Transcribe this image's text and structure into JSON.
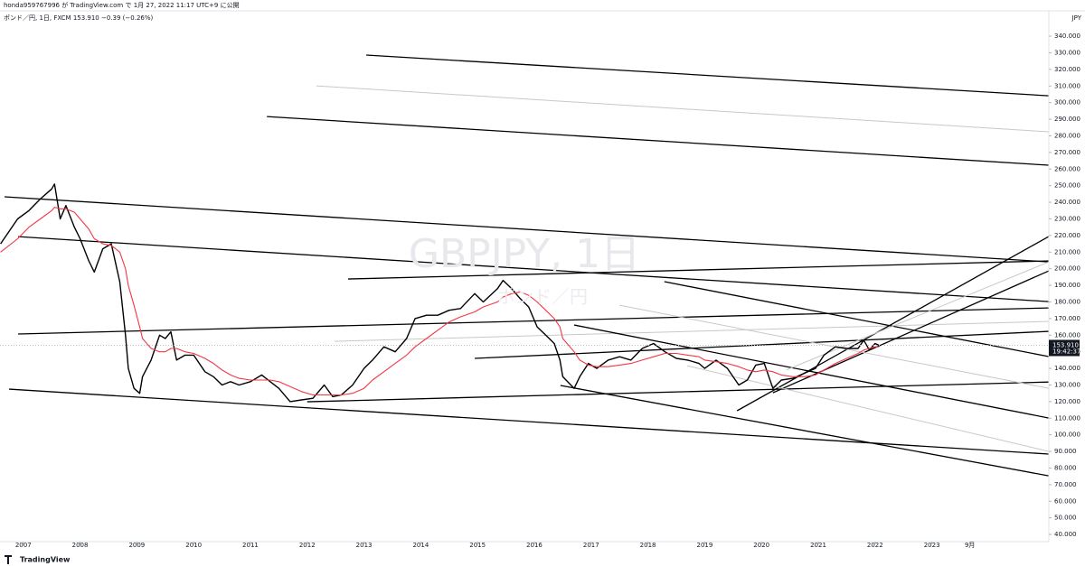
{
  "header": {
    "author": "honda959767996 が TradingView.com で 1月 27, 2022 11:17 UTC+9 に公開",
    "symbol": "ポンド／円, 1日, FXCM  153.910  −0.39 (−0.26%)",
    "watermark": "GBPJPY, 1日",
    "watermark_sub": "ポンド／円",
    "axis_unit": "JPY",
    "last_price_label": "153.910",
    "countdown": "19:42:37",
    "brand": "TradingView"
  },
  "chart_data": {
    "type": "line",
    "x": [
      2006.6,
      2006.9,
      2007.1,
      2007.3,
      2007.5,
      2007.55,
      2007.65,
      2007.75,
      2007.9,
      2008.0,
      2008.15,
      2008.25,
      2008.4,
      2008.55,
      2008.7,
      2008.8,
      2008.85,
      2008.95,
      2009.05,
      2009.1,
      2009.25,
      2009.4,
      2009.5,
      2009.6,
      2009.7,
      2009.85,
      2010.0,
      2010.2,
      2010.35,
      2010.5,
      2010.65,
      2010.8,
      2011.0,
      2011.2,
      2011.35,
      2011.5,
      2011.7,
      2011.9,
      2012.1,
      2012.3,
      2012.45,
      2012.6,
      2012.8,
      2013.0,
      2013.15,
      2013.35,
      2013.55,
      2013.75,
      2013.9,
      2014.1,
      2014.3,
      2014.5,
      2014.7,
      2014.95,
      2015.1,
      2015.35,
      2015.45,
      2015.6,
      2015.75,
      2015.9,
      2016.05,
      2016.2,
      2016.35,
      2016.45,
      2016.5,
      2016.7,
      2016.8,
      2016.95,
      2017.1,
      2017.3,
      2017.5,
      2017.7,
      2017.9,
      2018.1,
      2018.3,
      2018.5,
      2018.7,
      2018.9,
      2019.0,
      2019.2,
      2019.4,
      2019.6,
      2019.75,
      2019.9,
      2020.05,
      2020.2,
      2020.35,
      2020.55,
      2020.75,
      2020.95,
      2021.1,
      2021.3,
      2021.5,
      2021.7,
      2021.8,
      2021.9,
      2022.0,
      2022.07
    ],
    "series": [
      {
        "color": "#000000",
        "values": [
          215,
          230,
          235,
          242,
          248,
          251,
          230,
          238,
          225,
          218,
          205,
          198,
          212,
          215,
          192,
          160,
          140,
          128,
          125,
          135,
          145,
          160,
          158,
          162,
          145,
          148,
          148,
          138,
          135,
          130,
          132,
          130,
          132,
          136,
          132,
          128,
          120,
          121,
          122,
          130,
          123,
          124,
          130,
          140,
          145,
          153,
          150,
          158,
          170,
          172,
          172,
          175,
          176,
          185,
          180,
          188,
          193,
          188,
          182,
          177,
          165,
          160,
          155,
          145,
          135,
          128,
          135,
          143,
          140,
          145,
          147,
          145,
          152,
          155,
          150,
          146,
          145,
          143,
          140,
          145,
          140,
          130,
          133,
          142,
          143,
          128,
          133,
          134,
          137,
          140,
          148,
          153,
          152,
          152,
          157,
          151,
          155,
          153.91
        ]
      },
      {
        "color": "#f23645",
        "values": [
          210,
          218,
          225,
          230,
          235,
          237,
          236,
          236,
          234,
          230,
          224,
          218,
          215,
          214,
          210,
          200,
          190,
          178,
          165,
          158,
          152,
          150,
          150,
          152,
          152,
          150,
          149,
          146,
          143,
          139,
          136,
          134,
          133,
          133,
          133,
          132,
          129,
          126,
          124,
          124,
          124,
          124,
          125,
          128,
          133,
          138,
          143,
          148,
          153,
          158,
          163,
          168,
          171,
          174,
          177,
          180,
          183,
          185,
          186,
          184,
          180,
          175,
          170,
          165,
          158,
          150,
          145,
          142,
          141,
          141,
          142,
          143,
          145,
          147,
          149,
          149,
          148,
          147,
          145,
          144,
          143,
          141,
          139,
          138,
          139,
          138,
          136,
          135,
          135,
          136,
          139,
          143,
          146,
          149,
          151,
          152,
          153,
          153
        ]
      }
    ],
    "lines": [
      {
        "points": [
          2013.04,
          328.6,
          2025.06,
          304.1
        ],
        "color": "#000000"
      },
      {
        "points": [
          2012.16,
          310.1,
          2025.06,
          282.4
        ],
        "color": "#c8c8c8"
      },
      {
        "points": [
          2011.29,
          291.6,
          2025.06,
          262.3
        ],
        "color": "#000000"
      },
      {
        "points": [
          2006.67,
          243.3,
          2025.06,
          204.1
        ],
        "color": "#000000"
      },
      {
        "points": [
          2006.91,
          219.3,
          2025.06,
          180.2
        ],
        "color": "#000000"
      },
      {
        "points": [
          2012.72,
          193.8,
          2025.06,
          204.7
        ],
        "color": "#000000"
      },
      {
        "points": [
          2006.91,
          160.7,
          2025.06,
          176.4
        ],
        "color": "#000000"
      },
      {
        "points": [
          2012.48,
          156.3,
          2025.06,
          168.3
        ],
        "color": "#c8c8c8"
      },
      {
        "points": [
          2014.95,
          146.0,
          2025.06,
          162.3
        ],
        "color": "#000000"
      },
      {
        "points": [
          2018.29,
          192.2,
          2025.06,
          147.1
        ],
        "color": "#000000"
      },
      {
        "points": [
          2016.7,
          166.1,
          2025.06,
          110.1
        ],
        "color": "#000000"
      },
      {
        "points": [
          2016.46,
          129.7,
          2025.06,
          75.3
        ],
        "color": "#000000"
      },
      {
        "points": [
          2006.75,
          127.5,
          2025.06,
          88.4
        ],
        "color": "#000000"
      },
      {
        "points": [
          2012.0,
          119.9,
          2025.06,
          131.8
        ],
        "color": "#000000"
      },
      {
        "points": [
          2019.57,
          114.5,
          2025.06,
          219.4
        ],
        "color": "#000000"
      },
      {
        "points": [
          2020.2,
          125.3,
          2025.06,
          198.7
        ],
        "color": "#000000"
      },
      {
        "points": [
          2017.5,
          178.0,
          2025.06,
          128.0
        ],
        "color": "#c8c8c8"
      },
      {
        "points": [
          2018.69,
          141.6,
          2025.06,
          90.0
        ],
        "color": "#c8c8c8"
      },
      {
        "points": [
          2020.44,
          139.1,
          2025.06,
          204.1
        ],
        "color": "#c8c8c8"
      }
    ],
    "xlim": [
      2006.59,
      2025.06
    ],
    "ylim": [
      35.7,
      350.9
    ],
    "xticks": [
      2007,
      2008,
      2009,
      2010,
      2011,
      2012,
      2013,
      2014,
      2015,
      2016,
      2017,
      2018,
      2019,
      2020,
      2021,
      2022,
      2023,
      {
        "value": 2023.67,
        "label": "9月"
      }
    ],
    "yticks": [
      {
        "value": 40,
        "label": "40.000"
      },
      {
        "value": 50,
        "label": "50.000"
      },
      {
        "value": 60,
        "label": "60.000"
      },
      {
        "value": 70,
        "label": "70.000"
      },
      {
        "value": 80,
        "label": "80.000"
      },
      {
        "value": 90,
        "label": "90.000"
      },
      {
        "value": 100,
        "label": "100.000"
      },
      {
        "value": 110,
        "label": "110.000"
      },
      {
        "value": 120,
        "label": "120.000"
      },
      {
        "value": 130,
        "label": "130.000"
      },
      {
        "value": 140,
        "label": "140.000"
      },
      {
        "value": 150,
        "label": "150.000"
      },
      {
        "value": 160,
        "label": "160.000"
      },
      {
        "value": 170,
        "label": "170.000"
      },
      {
        "value": 180,
        "label": "180.000"
      },
      {
        "value": 190,
        "label": "190.000"
      },
      {
        "value": 200,
        "label": "200.000"
      },
      {
        "value": 210,
        "label": "210.000"
      },
      {
        "value": 220,
        "label": "220.000"
      },
      {
        "value": 230,
        "label": "230.000"
      },
      {
        "value": 240,
        "label": "240.000"
      },
      {
        "value": 250,
        "label": "250.000"
      },
      {
        "value": 260,
        "label": "260.000"
      },
      {
        "value": 270,
        "label": "270.000"
      },
      {
        "value": 280,
        "label": "280.000"
      },
      {
        "value": 290,
        "label": "290.000"
      },
      {
        "value": 300,
        "label": "300.000"
      },
      {
        "value": 310,
        "label": "310.000"
      },
      {
        "value": 320,
        "label": "320.000"
      },
      {
        "value": 330,
        "label": "330.000"
      },
      {
        "value": 340,
        "label": "340.000"
      }
    ]
  }
}
